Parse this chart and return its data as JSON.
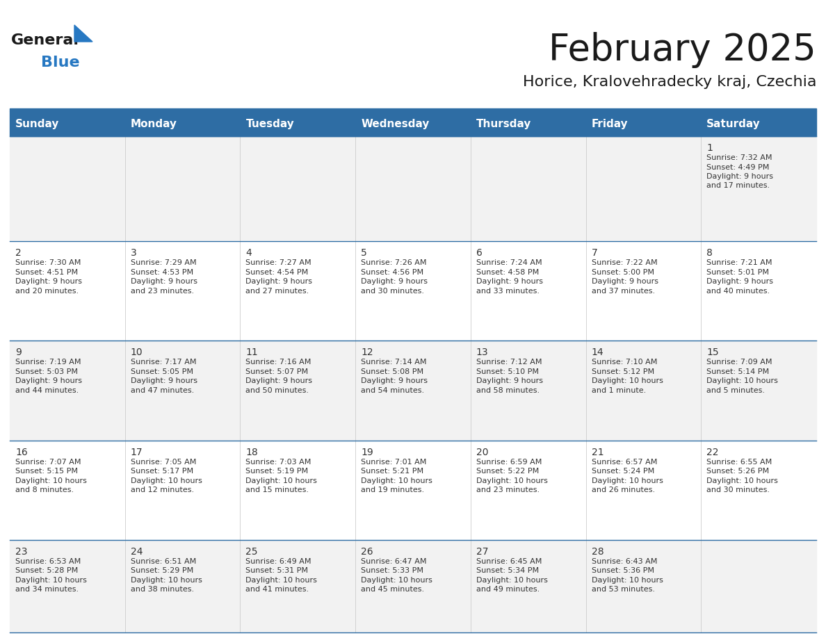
{
  "title": "February 2025",
  "subtitle": "Horice, Kralovehradecky kraj, Czechia",
  "header_color": "#2E6DA4",
  "header_text_color": "#FFFFFF",
  "days_of_week": [
    "Sunday",
    "Monday",
    "Tuesday",
    "Wednesday",
    "Thursday",
    "Friday",
    "Saturday"
  ],
  "background_color": "#FFFFFF",
  "cell_bg_light": "#F2F2F2",
  "cell_bg_white": "#FFFFFF",
  "border_color": "#2E6DA4",
  "day_number_color": "#333333",
  "text_color": "#333333",
  "calendar_data": [
    [
      null,
      null,
      null,
      null,
      null,
      null,
      {
        "day": 1,
        "sunrise": "7:32 AM",
        "sunset": "4:49 PM",
        "daylight": "9 hours and 17 minutes."
      }
    ],
    [
      {
        "day": 2,
        "sunrise": "7:30 AM",
        "sunset": "4:51 PM",
        "daylight": "9 hours and 20 minutes."
      },
      {
        "day": 3,
        "sunrise": "7:29 AM",
        "sunset": "4:53 PM",
        "daylight": "9 hours and 23 minutes."
      },
      {
        "day": 4,
        "sunrise": "7:27 AM",
        "sunset": "4:54 PM",
        "daylight": "9 hours and 27 minutes."
      },
      {
        "day": 5,
        "sunrise": "7:26 AM",
        "sunset": "4:56 PM",
        "daylight": "9 hours and 30 minutes."
      },
      {
        "day": 6,
        "sunrise": "7:24 AM",
        "sunset": "4:58 PM",
        "daylight": "9 hours and 33 minutes."
      },
      {
        "day": 7,
        "sunrise": "7:22 AM",
        "sunset": "5:00 PM",
        "daylight": "9 hours and 37 minutes."
      },
      {
        "day": 8,
        "sunrise": "7:21 AM",
        "sunset": "5:01 PM",
        "daylight": "9 hours and 40 minutes."
      }
    ],
    [
      {
        "day": 9,
        "sunrise": "7:19 AM",
        "sunset": "5:03 PM",
        "daylight": "9 hours and 44 minutes."
      },
      {
        "day": 10,
        "sunrise": "7:17 AM",
        "sunset": "5:05 PM",
        "daylight": "9 hours and 47 minutes."
      },
      {
        "day": 11,
        "sunrise": "7:16 AM",
        "sunset": "5:07 PM",
        "daylight": "9 hours and 50 minutes."
      },
      {
        "day": 12,
        "sunrise": "7:14 AM",
        "sunset": "5:08 PM",
        "daylight": "9 hours and 54 minutes."
      },
      {
        "day": 13,
        "sunrise": "7:12 AM",
        "sunset": "5:10 PM",
        "daylight": "9 hours and 58 minutes."
      },
      {
        "day": 14,
        "sunrise": "7:10 AM",
        "sunset": "5:12 PM",
        "daylight": "10 hours and 1 minute."
      },
      {
        "day": 15,
        "sunrise": "7:09 AM",
        "sunset": "5:14 PM",
        "daylight": "10 hours and 5 minutes."
      }
    ],
    [
      {
        "day": 16,
        "sunrise": "7:07 AM",
        "sunset": "5:15 PM",
        "daylight": "10 hours and 8 minutes."
      },
      {
        "day": 17,
        "sunrise": "7:05 AM",
        "sunset": "5:17 PM",
        "daylight": "10 hours and 12 minutes."
      },
      {
        "day": 18,
        "sunrise": "7:03 AM",
        "sunset": "5:19 PM",
        "daylight": "10 hours and 15 minutes."
      },
      {
        "day": 19,
        "sunrise": "7:01 AM",
        "sunset": "5:21 PM",
        "daylight": "10 hours and 19 minutes."
      },
      {
        "day": 20,
        "sunrise": "6:59 AM",
        "sunset": "5:22 PM",
        "daylight": "10 hours and 23 minutes."
      },
      {
        "day": 21,
        "sunrise": "6:57 AM",
        "sunset": "5:24 PM",
        "daylight": "10 hours and 26 minutes."
      },
      {
        "day": 22,
        "sunrise": "6:55 AM",
        "sunset": "5:26 PM",
        "daylight": "10 hours and 30 minutes."
      }
    ],
    [
      {
        "day": 23,
        "sunrise": "6:53 AM",
        "sunset": "5:28 PM",
        "daylight": "10 hours and 34 minutes."
      },
      {
        "day": 24,
        "sunrise": "6:51 AM",
        "sunset": "5:29 PM",
        "daylight": "10 hours and 38 minutes."
      },
      {
        "day": 25,
        "sunrise": "6:49 AM",
        "sunset": "5:31 PM",
        "daylight": "10 hours and 41 minutes."
      },
      {
        "day": 26,
        "sunrise": "6:47 AM",
        "sunset": "5:33 PM",
        "daylight": "10 hours and 45 minutes."
      },
      {
        "day": 27,
        "sunrise": "6:45 AM",
        "sunset": "5:34 PM",
        "daylight": "10 hours and 49 minutes."
      },
      {
        "day": 28,
        "sunrise": "6:43 AM",
        "sunset": "5:36 PM",
        "daylight": "10 hours and 53 minutes."
      },
      null
    ]
  ],
  "logo_color_general": "#1a1a1a",
  "logo_color_blue": "#2778C2",
  "logo_triangle_color": "#2778C2",
  "title_fontsize": 38,
  "subtitle_fontsize": 16,
  "header_fontsize": 11,
  "day_num_fontsize": 10,
  "cell_fontsize": 8
}
